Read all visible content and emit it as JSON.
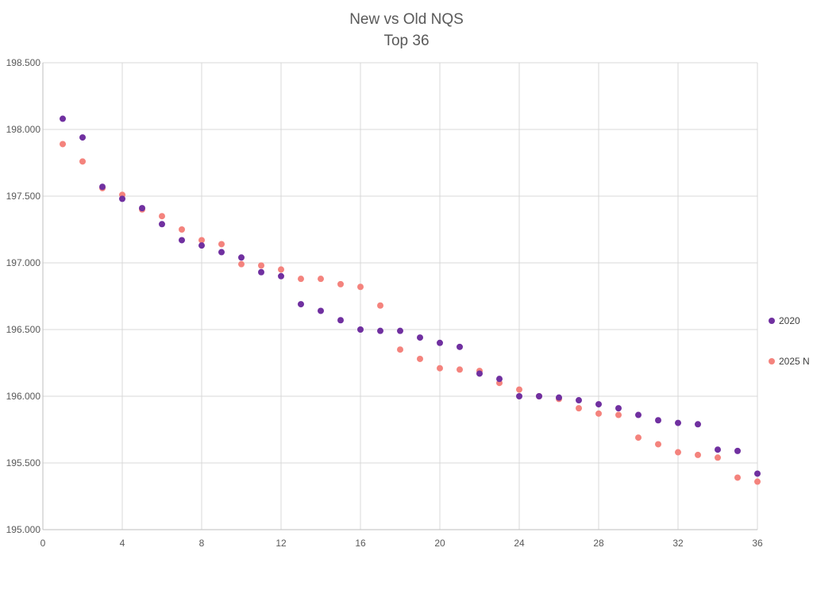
{
  "chart_data": {
    "type": "scatter",
    "title": "New vs Old NQS",
    "subtitle": "Top 36",
    "xlabel": "",
    "ylabel": "",
    "xlim": [
      0,
      36
    ],
    "ylim": [
      195.0,
      198.5
    ],
    "x_ticks": [
      0,
      4,
      8,
      12,
      16,
      20,
      24,
      28,
      32,
      36
    ],
    "x_tick_labels": [
      "0",
      "4",
      "8",
      "12",
      "16",
      "20",
      "24",
      "28",
      "32",
      "36"
    ],
    "y_ticks": [
      195.0,
      195.5,
      196.0,
      196.5,
      197.0,
      197.5,
      198.0,
      198.5
    ],
    "y_tick_labels": [
      "195.000",
      "195.500",
      "196.000",
      "196.500",
      "197.000",
      "197.500",
      "198.000",
      "198.500"
    ],
    "grid": true,
    "legend_position": "right",
    "x": [
      1,
      2,
      3,
      4,
      5,
      6,
      7,
      8,
      9,
      10,
      11,
      12,
      13,
      14,
      15,
      16,
      17,
      18,
      19,
      20,
      21,
      22,
      23,
      24,
      25,
      26,
      27,
      28,
      29,
      30,
      31,
      32,
      33,
      34,
      35,
      36
    ],
    "series": [
      {
        "name": "2020",
        "color": "#7030A0",
        "values": [
          198.08,
          197.94,
          197.57,
          197.48,
          197.41,
          197.29,
          197.17,
          197.13,
          197.08,
          197.04,
          196.93,
          196.9,
          196.69,
          196.64,
          196.57,
          196.5,
          196.49,
          196.49,
          196.44,
          196.4,
          196.37,
          196.17,
          196.13,
          196.0,
          196.0,
          195.99,
          195.97,
          195.94,
          195.91,
          195.86,
          195.82,
          195.8,
          195.79,
          195.6,
          195.59,
          195.42
        ]
      },
      {
        "name": "2025 N",
        "color": "#F4837D",
        "values": [
          197.89,
          197.76,
          197.56,
          197.51,
          197.4,
          197.35,
          197.25,
          197.17,
          197.14,
          196.99,
          196.98,
          196.95,
          196.88,
          196.88,
          196.84,
          196.82,
          196.68,
          196.35,
          196.28,
          196.21,
          196.2,
          196.19,
          196.1,
          196.05,
          196.0,
          195.98,
          195.91,
          195.87,
          195.86,
          195.69,
          195.64,
          195.58,
          195.56,
          195.54,
          195.39,
          195.36
        ]
      }
    ]
  }
}
